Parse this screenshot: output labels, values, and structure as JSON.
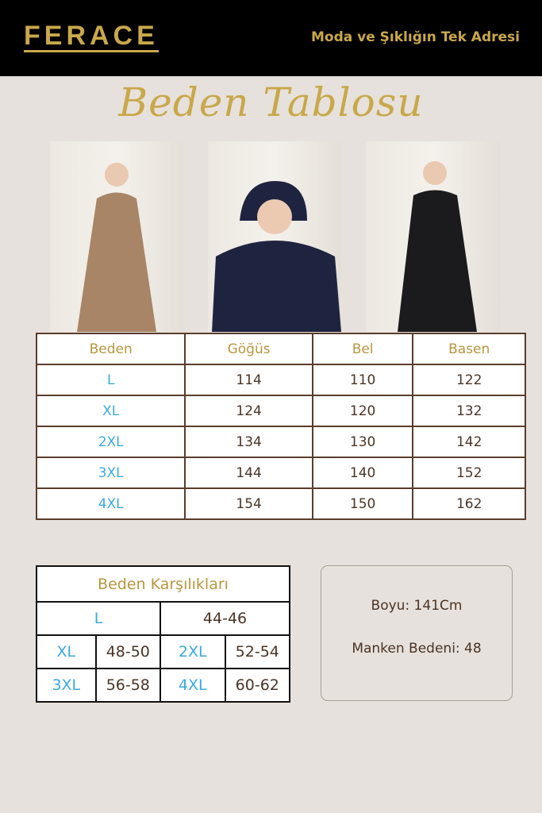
{
  "header": {
    "brand": "FERACE",
    "tagline": "Moda ve Şıklığın Tek Adresi"
  },
  "title": "Beden Tablosu",
  "photos": [
    {
      "coat_color": "#a88566"
    },
    {
      "coat_color": "#1e2440"
    },
    {
      "coat_color": "#1b1b1d"
    }
  ],
  "size_table": {
    "headers": [
      "Beden",
      "Göğüs",
      "Bel",
      "Basen"
    ],
    "rows": [
      [
        "L",
        "114",
        "110",
        "122"
      ],
      [
        "XL",
        "124",
        "120",
        "132"
      ],
      [
        "2XL",
        "134",
        "130",
        "142"
      ],
      [
        "3XL",
        "144",
        "140",
        "152"
      ],
      [
        "4XL",
        "154",
        "150",
        "162"
      ]
    ]
  },
  "correspondence": {
    "title": "Beden Karşılıkları",
    "first": [
      "L",
      "44-46"
    ],
    "rows": [
      [
        "XL",
        "48-50",
        "2XL",
        "52-54"
      ],
      [
        "3XL",
        "56-58",
        "4XL",
        "60-62"
      ]
    ]
  },
  "info": {
    "length": "Boyu:  141Cm",
    "model_size": "Manken Bedeni: 48"
  },
  "colors": {
    "gold": "#c9a84a",
    "size_blue": "#3aa9e0",
    "brown": "#4a3426"
  }
}
